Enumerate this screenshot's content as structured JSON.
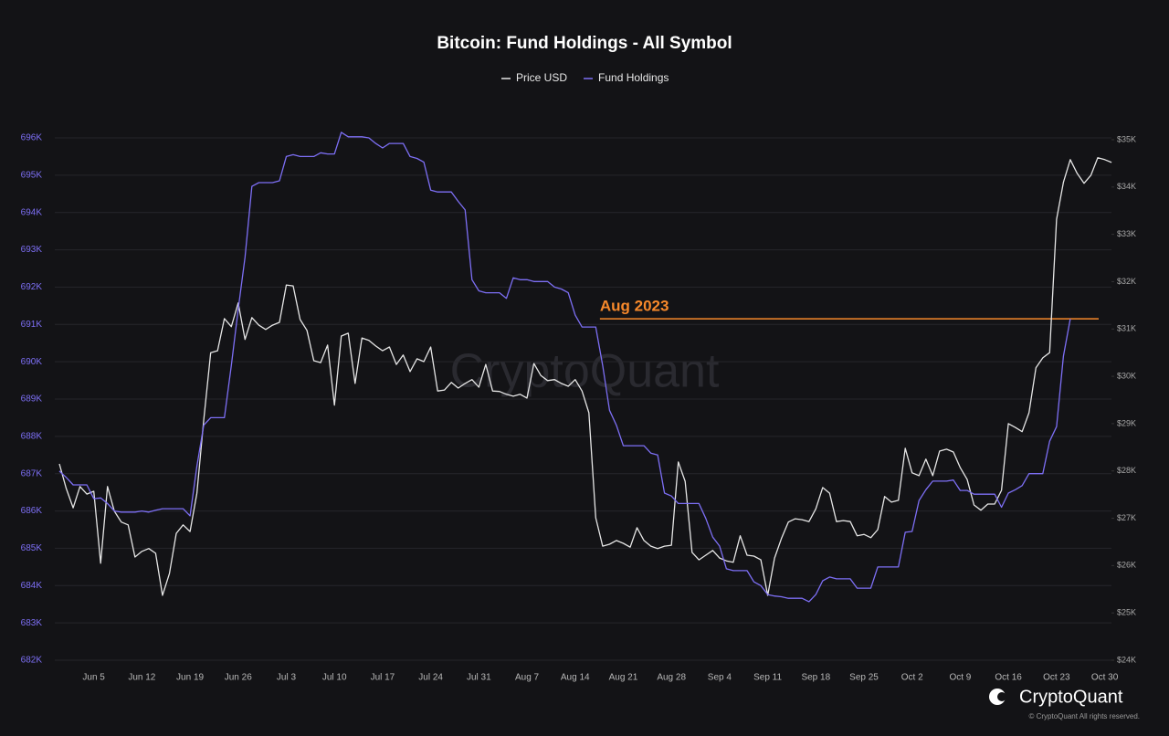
{
  "chart_data": {
    "type": "line",
    "title": "Bitcoin: Fund Holdings - All Symbol",
    "categories": [
      null,
      null,
      null,
      null,
      null,
      "Jun 5",
      null,
      null,
      null,
      null,
      null,
      null,
      "Jun 12",
      null,
      null,
      null,
      null,
      null,
      null,
      "Jun 19",
      null,
      null,
      null,
      null,
      null,
      null,
      "Jun 26",
      null,
      null,
      null,
      null,
      null,
      null,
      "Jul 3",
      null,
      null,
      null,
      null,
      null,
      null,
      "Jul 10",
      null,
      null,
      null,
      null,
      null,
      null,
      "Jul 17",
      null,
      null,
      null,
      null,
      null,
      null,
      "Jul 24",
      null,
      null,
      null,
      null,
      null,
      null,
      "Jul 31",
      null,
      null,
      null,
      null,
      null,
      null,
      "Aug 7",
      null,
      null,
      null,
      null,
      null,
      null,
      "Aug 14",
      null,
      null,
      null,
      null,
      null,
      null,
      "Aug 21",
      null,
      null,
      null,
      null,
      null,
      null,
      "Aug 28",
      null,
      null,
      null,
      null,
      null,
      null,
      "Sep 4",
      null,
      null,
      null,
      null,
      null,
      null,
      "Sep 11",
      null,
      null,
      null,
      null,
      null,
      null,
      "Sep 18",
      null,
      null,
      null,
      null,
      null,
      null,
      "Sep 25",
      null,
      null,
      null,
      null,
      null,
      null,
      "Oct 2",
      null,
      null,
      null,
      null,
      null,
      null,
      "Oct 9",
      null,
      null,
      null,
      null,
      null,
      null,
      "Oct 16",
      null,
      null,
      null,
      null,
      null,
      null,
      "Oct 23",
      null,
      null,
      null,
      null,
      null,
      null,
      "Oct 30",
      null
    ],
    "series": [
      {
        "name": "Price USD",
        "color": "#e6e6e6",
        "axis": "y2",
        "values": [
          28150,
          27630,
          27220,
          27670,
          27510,
          27570,
          26050,
          27670,
          27150,
          26920,
          26860,
          26180,
          26300,
          26360,
          26260,
          25370,
          25830,
          26680,
          26860,
          26720,
          27530,
          29080,
          30500,
          30540,
          31220,
          31050,
          31550,
          30780,
          31240,
          31080,
          30990,
          31080,
          31140,
          31930,
          31910,
          31200,
          30970,
          30330,
          30290,
          30660,
          29390,
          30850,
          30910,
          29850,
          30810,
          30760,
          30640,
          30540,
          30620,
          30250,
          30450,
          30100,
          30370,
          30310,
          30620,
          29690,
          29710,
          29870,
          29750,
          29850,
          29930,
          29770,
          30250,
          29690,
          29680,
          29620,
          29580,
          29620,
          29540,
          30270,
          30020,
          29910,
          29930,
          29850,
          29790,
          29930,
          29690,
          29230,
          27010,
          26410,
          26450,
          26530,
          26470,
          26390,
          26800,
          26530,
          26410,
          26360,
          26410,
          26430,
          28190,
          27780,
          26280,
          26120,
          26220,
          26320,
          26160,
          26100,
          26070,
          26630,
          26220,
          26200,
          26120,
          25370,
          26160,
          26570,
          26920,
          26990,
          26970,
          26930,
          27200,
          27650,
          27530,
          26930,
          26950,
          26930,
          26630,
          26660,
          26590,
          26760,
          27460,
          27340,
          27380,
          28480,
          27960,
          27900,
          28250,
          27900,
          28420,
          28460,
          28400,
          28070,
          27820,
          27280,
          27170,
          27300,
          27300,
          27590,
          29000,
          28920,
          28830,
          29230,
          30180,
          30390,
          30500,
          33320,
          34100,
          34580,
          34290,
          34080,
          34250,
          34620,
          34580,
          34520
        ]
      },
      {
        "name": "Fund Holdings",
        "color": "#7d6ff5",
        "values": [
          687070,
          686900,
          686700,
          686700,
          686700,
          686330,
          686350,
          686200,
          686000,
          685970,
          685970,
          685970,
          686000,
          685970,
          686020,
          686060,
          686060,
          686060,
          686060,
          685870,
          687200,
          688300,
          688500,
          688500,
          688500,
          689900,
          691400,
          692800,
          694700,
          694800,
          694800,
          694800,
          694850,
          695500,
          695550,
          695500,
          695500,
          695500,
          695600,
          695570,
          695570,
          696150,
          696030,
          696030,
          696030,
          696000,
          695850,
          695730,
          695850,
          695850,
          695850,
          695500,
          695450,
          695350,
          694600,
          694550,
          694550,
          694550,
          694300,
          694070,
          692200,
          691900,
          691850,
          691850,
          691850,
          691700,
          692250,
          692200,
          692200,
          692150,
          692150,
          692150,
          692000,
          691950,
          691850,
          691250,
          690930,
          690930,
          690930,
          689900,
          688700,
          688300,
          687750,
          687750,
          687750,
          687750,
          687550,
          687500,
          686480,
          686400,
          686200,
          686200,
          686200,
          686200,
          685800,
          685300,
          685060,
          684450,
          684400,
          684400,
          684400,
          684100,
          684000,
          683760,
          683720,
          683700,
          683660,
          683660,
          683660,
          683570,
          683760,
          684130,
          684230,
          684180,
          684180,
          684180,
          683930,
          683930,
          683930,
          684500,
          684500,
          684500,
          684500,
          685430,
          685450,
          686280,
          686570,
          686800,
          686800,
          686800,
          686830,
          686550,
          686550,
          686450,
          686450,
          686450,
          686450,
          686100,
          686480,
          686570,
          686680,
          687000,
          687000,
          687000,
          687870,
          688260,
          690150,
          691150,
          null,
          null,
          null,
          null,
          null,
          null
        ]
      }
    ],
    "ylim": [
      682000,
      696000
    ],
    "yticks": [
      {
        "value": 682000,
        "label": "682K"
      },
      {
        "value": 683000,
        "label": "683K"
      },
      {
        "value": 684000,
        "label": "684K"
      },
      {
        "value": 685000,
        "label": "685K"
      },
      {
        "value": 686000,
        "label": "686K"
      },
      {
        "value": 687000,
        "label": "687K"
      },
      {
        "value": 688000,
        "label": "688K"
      },
      {
        "value": 689000,
        "label": "689K"
      },
      {
        "value": 690000,
        "label": "690K"
      },
      {
        "value": 691000,
        "label": "691K"
      },
      {
        "value": 692000,
        "label": "692K"
      },
      {
        "value": 693000,
        "label": "693K"
      },
      {
        "value": 694000,
        "label": "694K"
      },
      {
        "value": 695000,
        "label": "695K"
      },
      {
        "value": 696000,
        "label": "696K"
      }
    ],
    "y2lim": [
      24000,
      35000
    ],
    "y2ticks": [
      {
        "value": 24000,
        "label": "$24K"
      },
      {
        "value": 25000,
        "label": "$25K"
      },
      {
        "value": 26000,
        "label": "$26K"
      },
      {
        "value": 27000,
        "label": "$27K"
      },
      {
        "value": 28000,
        "label": "$28K"
      },
      {
        "value": 29000,
        "label": "$29K"
      },
      {
        "value": 30000,
        "label": "$30K"
      },
      {
        "value": 31000,
        "label": "$31K"
      },
      {
        "value": 32000,
        "label": "$32K"
      },
      {
        "value": 33000,
        "label": "$33K"
      },
      {
        "value": 34000,
        "label": "$34K"
      },
      {
        "value": 35000,
        "label": "$35K"
      }
    ],
    "grid": true,
    "annotation": {
      "text": "Aug 2023",
      "value": 691150,
      "color": "#f7892b"
    },
    "watermark": "CryptoQuant",
    "brand": "CryptoQuant",
    "copyright": "© CryptoQuant All rights reserved."
  }
}
